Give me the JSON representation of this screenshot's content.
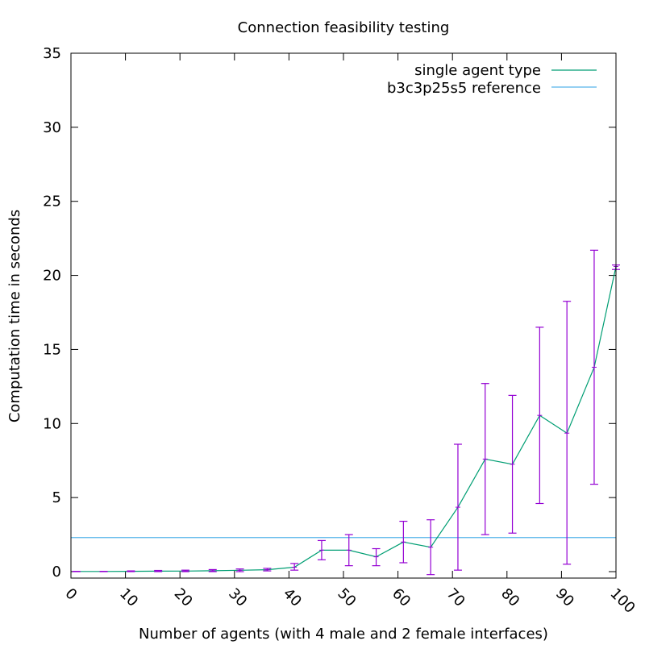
{
  "chart_data": {
    "type": "line",
    "title": "Connection feasibility testing",
    "xlabel": "Number of agents (with 4 male and 2 female interfaces)",
    "ylabel": "Computation time in seconds",
    "xlim": [
      0,
      100
    ],
    "ylim": [
      0,
      35
    ],
    "xticks": [
      "0",
      "10",
      "20",
      "30",
      "40",
      "50",
      "60",
      "70",
      "80",
      "90",
      "100"
    ],
    "yticks": [
      "0",
      "5",
      "10",
      "15",
      "20",
      "25",
      "30",
      "35"
    ],
    "legend_position": "top-right",
    "series": [
      {
        "name": "single agent type",
        "color": "#009e73",
        "x": [
          1,
          6,
          11,
          16,
          21,
          26,
          31,
          36,
          41,
          46,
          51,
          56,
          61,
          66,
          71,
          76,
          81,
          86,
          91,
          96,
          101
        ],
        "y": [
          0.01,
          0.01,
          0.02,
          0.03,
          0.04,
          0.06,
          0.09,
          0.13,
          0.3,
          1.45,
          1.45,
          1.0,
          2.0,
          1.65,
          4.35,
          7.6,
          7.25,
          10.55,
          9.35,
          13.8,
          20.6
        ],
        "err_low": [
          0,
          0,
          0,
          0,
          0,
          0,
          0,
          0.05,
          0.1,
          0.8,
          0.4,
          0.4,
          0.6,
          -0.2,
          0.1,
          2.5,
          2.6,
          4.6,
          0.5,
          5.9,
          20.4
        ],
        "err_high": [
          0.02,
          0.02,
          0.05,
          0.08,
          0.1,
          0.14,
          0.18,
          0.22,
          0.55,
          2.1,
          2.5,
          1.55,
          3.4,
          3.5,
          8.6,
          12.7,
          11.9,
          16.5,
          18.25,
          21.7,
          20.7
        ],
        "error_bar_color": "#9400d3"
      },
      {
        "name": "b3c3p25s5 reference",
        "color": "#56b4e9",
        "y": 2.3
      }
    ]
  }
}
